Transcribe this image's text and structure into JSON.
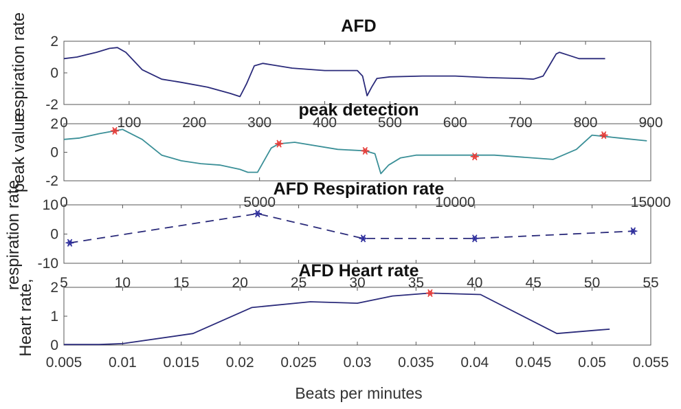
{
  "chart_data": [
    {
      "type": "line",
      "title": "AFD",
      "xlabel": "",
      "ylabel": "respiration rate",
      "xlim": [
        0,
        900
      ],
      "ylim": [
        -2,
        2
      ],
      "xticks": [
        0,
        100,
        200,
        300,
        400,
        500,
        600,
        700,
        800,
        900
      ],
      "yticks": [
        2,
        0,
        -2
      ],
      "line_color": "#2a2a7a",
      "series": [
        {
          "x": [
            0,
            20,
            50,
            70,
            82,
            95,
            120,
            150,
            180,
            220,
            255,
            270,
            280,
            292,
            305,
            320,
            350,
            400,
            450,
            458,
            465,
            472,
            480,
            500,
            550,
            600,
            650,
            700,
            720,
            735,
            745,
            755,
            760,
            775,
            790,
            820,
            830
          ],
          "y": [
            0.9,
            1.0,
            1.3,
            1.55,
            1.6,
            1.3,
            0.2,
            -0.4,
            -0.6,
            -0.9,
            -1.3,
            -1.5,
            -0.7,
            0.45,
            0.6,
            0.5,
            0.3,
            0.15,
            0.15,
            -0.2,
            -1.45,
            -0.9,
            -0.35,
            -0.25,
            -0.2,
            -0.2,
            -0.3,
            -0.35,
            -0.4,
            -0.2,
            0.5,
            1.2,
            1.3,
            1.1,
            0.9,
            0.9,
            0.9
          ]
        }
      ]
    },
    {
      "type": "line",
      "title": "peak detection",
      "xlabel": "",
      "ylabel": "peak value",
      "xlim": [
        0,
        15000
      ],
      "ylim": [
        -2,
        2
      ],
      "xticks": [
        0,
        5000,
        10000,
        15000
      ],
      "yticks": [
        2,
        0,
        -2
      ],
      "line_color": "#3a8f97",
      "marker_color": "#e53935",
      "series": [
        {
          "x": [
            0,
            400,
            900,
            1300,
            1500,
            2000,
            2500,
            3000,
            3500,
            4000,
            4500,
            4700,
            4950,
            5300,
            5500,
            5900,
            7000,
            7700,
            7950,
            8100,
            8300,
            8600,
            9000,
            10000,
            11000,
            11500,
            12500,
            13100,
            13500,
            14200,
            14900
          ],
          "y": [
            0.9,
            1.0,
            1.3,
            1.5,
            1.6,
            0.9,
            -0.2,
            -0.6,
            -0.8,
            -0.9,
            -1.2,
            -1.4,
            -1.4,
            0.3,
            0.6,
            0.7,
            0.2,
            0.1,
            -0.1,
            -1.5,
            -0.9,
            -0.4,
            -0.2,
            -0.2,
            -0.2,
            -0.3,
            -0.5,
            0.2,
            1.2,
            1.0,
            0.8
          ]
        }
      ],
      "peaks": [
        {
          "x": 1300,
          "y": 1.5
        },
        {
          "x": 5500,
          "y": 0.6
        },
        {
          "x": 7700,
          "y": 0.1
        },
        {
          "x": 10500,
          "y": -0.3
        },
        {
          "x": 13800,
          "y": 1.2
        }
      ]
    },
    {
      "type": "line",
      "title": "AFD Respiration rate",
      "xlabel": "",
      "ylabel": "respiration rate",
      "xlim": [
        5,
        55
      ],
      "ylim": [
        -10,
        10
      ],
      "xticks": [
        5,
        10,
        15,
        20,
        25,
        30,
        35,
        40,
        45,
        50,
        55
      ],
      "yticks": [
        10,
        0,
        -10
      ],
      "line_color": "#2a2a7a",
      "line_style": "dashed",
      "marker_color": "#2a2a9a",
      "series": [
        {
          "x": [
            5.5,
            21.5,
            30.5,
            40,
            53.5
          ],
          "y": [
            -3,
            7,
            -1.5,
            -1.5,
            1
          ]
        }
      ]
    },
    {
      "type": "line",
      "title": "AFD Heart rate",
      "xlabel": "Beats per minutes",
      "ylabel": "Heart rate,",
      "xlim": [
        0.005,
        0.055
      ],
      "ylim": [
        0,
        2
      ],
      "xticks": [
        "0.005",
        "0.01",
        "0.015",
        "0.02",
        "0.025",
        "0.03",
        "0.035",
        "0.04",
        "0.045",
        "0.05",
        "0.055"
      ],
      "yticks": [
        2,
        1,
        0
      ],
      "line_color": "#2a2a7a",
      "marker_color": "#e53935",
      "series": [
        {
          "x": [
            0.005,
            0.008,
            0.01,
            0.016,
            0.021,
            0.026,
            0.03,
            0.033,
            0.0362,
            0.0405,
            0.047,
            0.0505,
            0.0515
          ],
          "y": [
            0.02,
            0.02,
            0.05,
            0.4,
            1.3,
            1.5,
            1.45,
            1.7,
            1.8,
            1.75,
            0.4,
            0.52,
            0.55
          ]
        }
      ],
      "peaks": [
        {
          "x": 0.0362,
          "y": 1.8
        }
      ]
    }
  ]
}
